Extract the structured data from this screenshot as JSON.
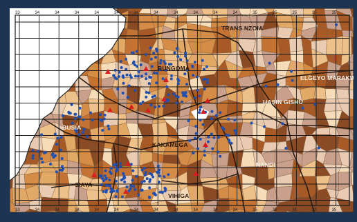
{
  "map": {
    "top_tick_labels": [
      "33",
      "34",
      "34",
      "34",
      "34",
      "34",
      "34",
      "34",
      "34",
      "34",
      "34",
      "34",
      "35",
      "35",
      "35",
      "35",
      "35"
    ],
    "bottom_tick_labels": [
      "33",
      "34",
      "34",
      "34",
      "34",
      "34",
      "34",
      "34",
      "34",
      "34",
      "34",
      "34",
      "35",
      "35",
      "35",
      "35",
      "35"
    ],
    "regions": [
      {
        "name": "TRANS NZOIA",
        "style": "dark"
      },
      {
        "name": "BUNGOMA",
        "style": "dark"
      },
      {
        "name": "ELGEYO MARAKWET",
        "style": "light"
      },
      {
        "name": "UASIN GISHU",
        "style": "light"
      },
      {
        "name": "BUSIA",
        "style": "light"
      },
      {
        "name": "KAKAMEGA",
        "style": "dark"
      },
      {
        "name": "NANDI",
        "style": "light"
      },
      {
        "name": "SIAYA",
        "style": "dark"
      },
      {
        "name": "VIHIGA",
        "style": "dark"
      }
    ],
    "colors": {
      "background": "#1d3553",
      "water_white": "#ffffff",
      "choropleth": [
        "#f6dcb8",
        "#eec08a",
        "#e2a865",
        "#d48c46",
        "#c57332",
        "#a85a26",
        "#8a4a24",
        "#c9a08c",
        "#e8cbb1"
      ],
      "grid": "#1a1a1a",
      "boundary": "#2a2a2a",
      "blue_point": "#1f4fb0",
      "red_marker": "#d81e1e"
    },
    "legend": {
      "blue_points": "dot-marker",
      "red_markers": "triangle-marker"
    }
  }
}
